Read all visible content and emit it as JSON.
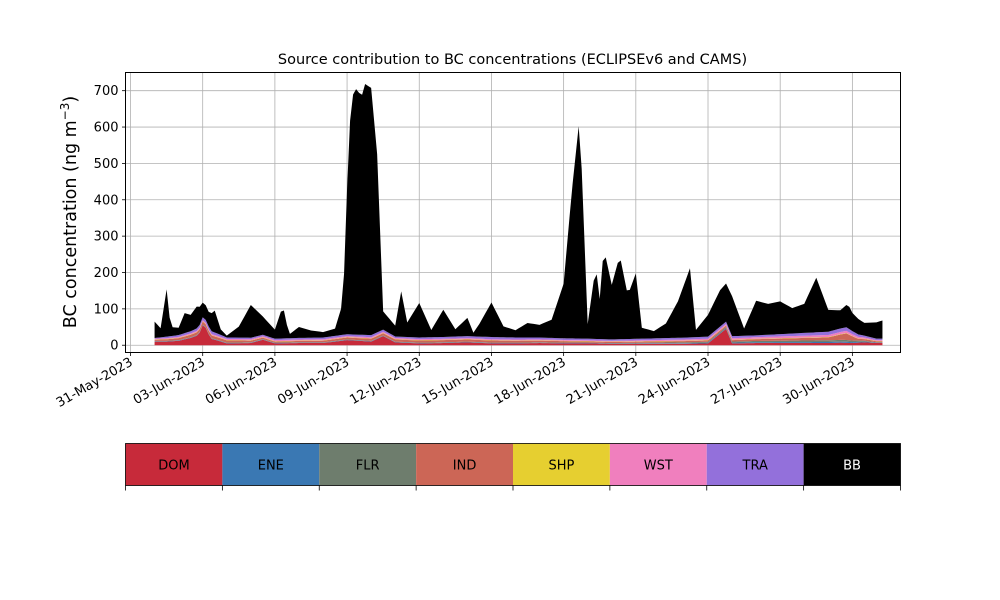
{
  "chart_data": {
    "type": "area",
    "stacked": true,
    "title": "Source contribution to BC concentrations (ECLIPSEv6 and CAMS)",
    "ylabel": "BC concentration (ng m",
    "ylabel_sup": "−3",
    "ylabel_close": ")",
    "ylim": [
      -20,
      750
    ],
    "yticks": [
      0,
      100,
      200,
      300,
      400,
      500,
      600,
      700
    ],
    "xlim": [
      "2023-05-30T19:00",
      "2023-07-02T00:00"
    ],
    "xticks": [
      {
        "date": "2023-05-31",
        "label": "31-May-2023"
      },
      {
        "date": "2023-06-03",
        "label": "03-Jun-2023"
      },
      {
        "date": "2023-06-06",
        "label": "06-Jun-2023"
      },
      {
        "date": "2023-06-09",
        "label": "09-Jun-2023"
      },
      {
        "date": "2023-06-12",
        "label": "12-Jun-2023"
      },
      {
        "date": "2023-06-15",
        "label": "15-Jun-2023"
      },
      {
        "date": "2023-06-18",
        "label": "18-Jun-2023"
      },
      {
        "date": "2023-06-21",
        "label": "21-Jun-2023"
      },
      {
        "date": "2023-06-24",
        "label": "24-Jun-2023"
      },
      {
        "date": "2023-06-27",
        "label": "27-Jun-2023"
      },
      {
        "date": "2023-06-30",
        "label": "30-Jun-2023"
      }
    ],
    "grid": true,
    "legend": "colorbar-below",
    "series": [
      {
        "name": "DOM",
        "color": "#c72a3a",
        "points": [
          [
            "2023-06-01T00:00",
            10
          ],
          [
            "2023-06-01T12:00",
            10
          ],
          [
            "2023-06-02T00:00",
            12
          ],
          [
            "2023-06-02T12:00",
            20
          ],
          [
            "2023-06-02T20:00",
            28
          ],
          [
            "2023-06-03T00:00",
            55
          ],
          [
            "2023-06-03T03:00",
            48
          ],
          [
            "2023-06-03T08:00",
            18
          ],
          [
            "2023-06-03T16:00",
            12
          ],
          [
            "2023-06-04T00:00",
            5
          ],
          [
            "2023-06-05T00:00",
            6
          ],
          [
            "2023-06-05T12:00",
            15
          ],
          [
            "2023-06-06T00:00",
            5
          ],
          [
            "2023-06-07T00:00",
            6
          ],
          [
            "2023-06-08T00:00",
            6
          ],
          [
            "2023-06-09T00:00",
            14
          ],
          [
            "2023-06-09T12:00",
            12
          ],
          [
            "2023-06-10T00:00",
            10
          ],
          [
            "2023-06-10T12:00",
            25
          ],
          [
            "2023-06-11T00:00",
            8
          ],
          [
            "2023-06-12T00:00",
            5
          ],
          [
            "2023-06-13T00:00",
            6
          ],
          [
            "2023-06-14T00:00",
            8
          ],
          [
            "2023-06-15T00:00",
            5
          ],
          [
            "2023-06-16T00:00",
            5
          ],
          [
            "2023-06-17T00:00",
            6
          ],
          [
            "2023-06-18T00:00",
            5
          ],
          [
            "2023-06-19T00:00",
            5
          ],
          [
            "2023-06-20T00:00",
            4
          ],
          [
            "2023-06-21T00:00",
            4
          ],
          [
            "2023-06-22T00:00",
            4
          ],
          [
            "2023-06-23T00:00",
            4
          ],
          [
            "2023-06-24T00:00",
            5
          ],
          [
            "2023-06-24T18:00",
            45
          ],
          [
            "2023-06-25T00:00",
            5
          ],
          [
            "2023-06-26T00:00",
            6
          ],
          [
            "2023-06-27T00:00",
            6
          ],
          [
            "2023-06-28T00:00",
            6
          ],
          [
            "2023-06-29T00:00",
            6
          ],
          [
            "2023-06-29T12:00",
            7
          ],
          [
            "2023-06-30T00:00",
            6
          ],
          [
            "2023-06-30T12:00",
            8
          ],
          [
            "2023-07-01T00:00",
            6
          ]
        ]
      },
      {
        "name": "ENE",
        "color": "#3a78b3",
        "points": [
          [
            "2023-06-01T00:00",
            1
          ],
          [
            "2023-06-10T00:00",
            1
          ],
          [
            "2023-06-20T00:00",
            1
          ],
          [
            "2023-06-29T18:00",
            3
          ],
          [
            "2023-07-01T00:00",
            1
          ]
        ]
      },
      {
        "name": "FLR",
        "color": "#6e7d6d",
        "points": [
          [
            "2023-06-01T00:00",
            1
          ],
          [
            "2023-06-10T00:00",
            1
          ],
          [
            "2023-06-20T00:00",
            1
          ],
          [
            "2023-06-29T18:00",
            5
          ],
          [
            "2023-07-01T00:00",
            1
          ]
        ]
      },
      {
        "name": "IND",
        "color": "#cc6656",
        "points": [
          [
            "2023-06-01T00:00",
            3
          ],
          [
            "2023-06-03T00:00",
            8
          ],
          [
            "2023-06-06T00:00",
            3
          ],
          [
            "2023-06-10T00:00",
            6
          ],
          [
            "2023-06-15T00:00",
            6
          ],
          [
            "2023-06-20T00:00",
            3
          ],
          [
            "2023-06-25T00:00",
            4
          ],
          [
            "2023-06-29T00:00",
            8
          ],
          [
            "2023-06-29T18:00",
            18
          ],
          [
            "2023-06-30T06:00",
            5
          ],
          [
            "2023-07-01T00:00",
            3
          ]
        ]
      },
      {
        "name": "SHP",
        "color": "#e6cf30",
        "points": [
          [
            "2023-06-01T00:00",
            1
          ],
          [
            "2023-06-15T00:00",
            1
          ],
          [
            "2023-07-01T00:00",
            1
          ]
        ]
      },
      {
        "name": "WST",
        "color": "#f07fbe",
        "points": [
          [
            "2023-06-01T00:00",
            2
          ],
          [
            "2023-06-03T00:00",
            3
          ],
          [
            "2023-06-10T00:00",
            3
          ],
          [
            "2023-06-20T00:00",
            2
          ],
          [
            "2023-06-29T18:00",
            6
          ],
          [
            "2023-07-01T00:00",
            2
          ]
        ]
      },
      {
        "name": "TRA",
        "color": "#9370db",
        "points": [
          [
            "2023-06-01T00:00",
            2
          ],
          [
            "2023-06-01T12:00",
            4
          ],
          [
            "2023-06-02T12:00",
            6
          ],
          [
            "2023-06-03T00:00",
            8
          ],
          [
            "2023-06-03T08:00",
            8
          ],
          [
            "2023-06-04T00:00",
            4
          ],
          [
            "2023-06-06T00:00",
            4
          ],
          [
            "2023-06-09T00:00",
            5
          ],
          [
            "2023-06-10T12:00",
            6
          ],
          [
            "2023-06-11T00:00",
            4
          ],
          [
            "2023-06-15T00:00",
            6
          ],
          [
            "2023-06-17T00:00",
            5
          ],
          [
            "2023-06-20T00:00",
            4
          ],
          [
            "2023-06-24T18:00",
            6
          ],
          [
            "2023-06-26T00:00",
            5
          ],
          [
            "2023-06-29T18:00",
            10
          ],
          [
            "2023-06-30T12:00",
            5
          ],
          [
            "2023-07-01T00:00",
            4
          ]
        ]
      },
      {
        "name": "BB",
        "color": "#000000",
        "points": [
          [
            "2023-06-01T00:00",
            45
          ],
          [
            "2023-06-01T06:00",
            25
          ],
          [
            "2023-06-01T12:00",
            130
          ],
          [
            "2023-06-01T16:00",
            25
          ],
          [
            "2023-06-02T00:00",
            20
          ],
          [
            "2023-06-02T06:00",
            55
          ],
          [
            "2023-06-02T12:00",
            45
          ],
          [
            "2023-06-02T18:00",
            60
          ],
          [
            "2023-06-03T00:00",
            40
          ],
          [
            "2023-06-03T06:00",
            40
          ],
          [
            "2023-06-03T12:00",
            60
          ],
          [
            "2023-06-03T18:00",
            15
          ],
          [
            "2023-06-04T00:00",
            5
          ],
          [
            "2023-06-04T12:00",
            30
          ],
          [
            "2023-06-05T00:00",
            90
          ],
          [
            "2023-06-05T12:00",
            50
          ],
          [
            "2023-06-06T00:00",
            25
          ],
          [
            "2023-06-06T08:00",
            90
          ],
          [
            "2023-06-06T14:00",
            10
          ],
          [
            "2023-06-07T00:00",
            30
          ],
          [
            "2023-06-07T12:00",
            20
          ],
          [
            "2023-06-08T00:00",
            15
          ],
          [
            "2023-06-08T12:00",
            20
          ],
          [
            "2023-06-08T20:00",
            90
          ],
          [
            "2023-06-09T00:00",
            400
          ],
          [
            "2023-06-09T04:00",
            650
          ],
          [
            "2023-06-09T10:00",
            680
          ],
          [
            "2023-06-09T14:00",
            650
          ],
          [
            "2023-06-09T18:00",
            690
          ],
          [
            "2023-06-10T00:00",
            680
          ],
          [
            "2023-06-10T06:00",
            490
          ],
          [
            "2023-06-10T12:00",
            50
          ],
          [
            "2023-06-11T00:00",
            30
          ],
          [
            "2023-06-11T06:00",
            125
          ],
          [
            "2023-06-11T12:00",
            40
          ],
          [
            "2023-06-12T00:00",
            95
          ],
          [
            "2023-06-12T12:00",
            20
          ],
          [
            "2023-06-13T00:00",
            75
          ],
          [
            "2023-06-13T12:00",
            20
          ],
          [
            "2023-06-14T00:00",
            50
          ],
          [
            "2023-06-14T06:00",
            10
          ],
          [
            "2023-06-14T12:00",
            35
          ],
          [
            "2023-06-15T00:00",
            95
          ],
          [
            "2023-06-15T12:00",
            30
          ],
          [
            "2023-06-16T00:00",
            20
          ],
          [
            "2023-06-16T12:00",
            40
          ],
          [
            "2023-06-17T00:00",
            35
          ],
          [
            "2023-06-17T12:00",
            50
          ],
          [
            "2023-06-18T00:00",
            150
          ],
          [
            "2023-06-18T08:00",
            400
          ],
          [
            "2023-06-18T16:00",
            610
          ],
          [
            "2023-06-19T00:00",
            40
          ],
          [
            "2023-06-19T08:00",
            200
          ],
          [
            "2023-06-19T12:00",
            110
          ],
          [
            "2023-06-19T16:00",
            250
          ],
          [
            "2023-06-20T00:00",
            150
          ],
          [
            "2023-06-20T08:00",
            230
          ],
          [
            "2023-06-20T16:00",
            120
          ],
          [
            "2023-06-21T00:00",
            180
          ],
          [
            "2023-06-21T06:00",
            30
          ],
          [
            "2023-06-21T18:00",
            20
          ],
          [
            "2023-06-22T06:00",
            40
          ],
          [
            "2023-06-22T18:00",
            100
          ],
          [
            "2023-06-23T06:00",
            190
          ],
          [
            "2023-06-23T12:00",
            20
          ],
          [
            "2023-06-24T00:00",
            60
          ],
          [
            "2023-06-24T12:00",
            100
          ],
          [
            "2023-06-25T00:00",
            110
          ],
          [
            "2023-06-25T12:00",
            20
          ],
          [
            "2023-06-26T00:00",
            95
          ],
          [
            "2023-06-26T12:00",
            85
          ],
          [
            "2023-06-27T00:00",
            90
          ],
          [
            "2023-06-27T12:00",
            70
          ],
          [
            "2023-06-28T00:00",
            80
          ],
          [
            "2023-06-28T12:00",
            150
          ],
          [
            "2023-06-29T00:00",
            60
          ],
          [
            "2023-06-29T12:00",
            50
          ],
          [
            "2023-06-29T20:00",
            65
          ],
          [
            "2023-06-30T00:00",
            50
          ],
          [
            "2023-06-30T12:00",
            35
          ],
          [
            "2023-07-01T00:00",
            45
          ],
          [
            "2023-07-01T06:00",
            50
          ]
        ]
      }
    ]
  }
}
